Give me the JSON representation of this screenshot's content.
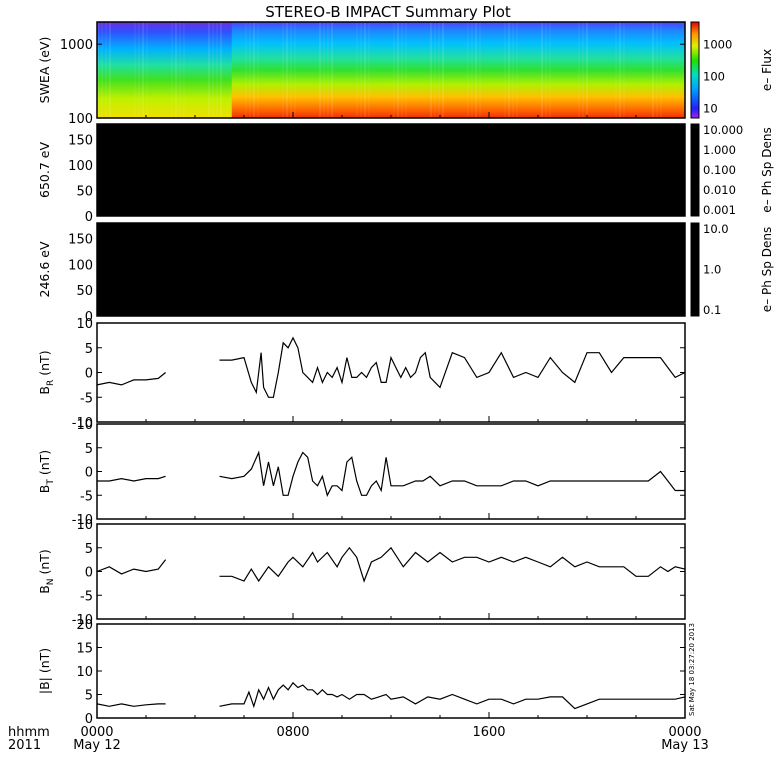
{
  "title": "STEREO-B IMPACT Summary Plot",
  "time_axis": {
    "corner_top": "hhmm",
    "corner_bottom": "2011",
    "ticks": [
      {
        "hour": 0,
        "line1": "0000",
        "line2": "May 12"
      },
      {
        "hour": 8,
        "line1": "0800",
        "line2": ""
      },
      {
        "hour": 16,
        "line1": "1600",
        "line2": ""
      },
      {
        "hour": 24,
        "line1": "0000",
        "line2": "May 13"
      }
    ]
  },
  "stamp": "Sat May 18 03:27:20 2013",
  "colors": {
    "line": "#000000",
    "frame": "#000000",
    "background": "#ffffff"
  },
  "chart_data": [
    {
      "type": "heatmap",
      "id": "swea",
      "ylabel": "SWEA (eV)",
      "yscale": "log",
      "ylim": [
        100,
        2000
      ],
      "yticks": [
        "1000",
        "100"
      ],
      "colorbar": {
        "label": "e– Flux",
        "scale": "log",
        "ticks": [
          "1000",
          "100",
          "10"
        ],
        "range": [
          5,
          5000
        ]
      },
      "description_values": {
        "gap_hours": [
          0,
          5.5
        ],
        "enhanced_flux_hours": [
          5.5,
          23.5
        ]
      }
    },
    {
      "type": "heatmap",
      "id": "pad650",
      "ylabel": "650.7 eV",
      "ylim": [
        0,
        180
      ],
      "yticks": [
        "150",
        "100",
        "50",
        "0"
      ],
      "colorbar": {
        "label": "e– Ph Sp Dens",
        "scale": "log",
        "ticks": [
          "10.000",
          "1.000",
          "0.100",
          "0.010",
          "0.001"
        ]
      }
    },
    {
      "type": "heatmap",
      "id": "pad246",
      "ylabel": "246.6 eV",
      "ylim": [
        0,
        180
      ],
      "yticks": [
        "150",
        "100",
        "50",
        "0"
      ],
      "colorbar": {
        "label": "e– Ph Sp Dens",
        "scale": "log",
        "ticks": [
          "10.0",
          "1.0",
          "0.1"
        ]
      }
    },
    {
      "type": "line",
      "id": "br",
      "ylabel_main": "B",
      "ylabel_sub": "R",
      "ylabel_unit": " (nT)",
      "ylim": [
        -10,
        10
      ],
      "yticks": [
        "10",
        "5",
        "0",
        "-5",
        "-10"
      ],
      "segments": [
        {
          "x": [
            0,
            0.5,
            1,
            1.5,
            2,
            2.5,
            2.8
          ],
          "y": [
            -2.5,
            -2,
            -2.5,
            -1.5,
            -1.5,
            -1.2,
            0
          ]
        },
        {
          "x": [
            5,
            5.5,
            6,
            6.3,
            6.5,
            6.7,
            6.8,
            7,
            7.2,
            7.4,
            7.6,
            7.8,
            8,
            8.2,
            8.4,
            8.6,
            8.8,
            9,
            9.2,
            9.4,
            9.6,
            9.8,
            10,
            10.2,
            10.4,
            10.6,
            10.8,
            11,
            11.2,
            11.4,
            11.6,
            11.8,
            12,
            12.2,
            12.4,
            12.6,
            12.8,
            13,
            13.2,
            13.4,
            13.6,
            13.8,
            14,
            14.5,
            15,
            15.5,
            16,
            16.5,
            17,
            17.5,
            18,
            18.5,
            19,
            19.5,
            20,
            20.5,
            21,
            21.5,
            22,
            22.5,
            23,
            23.3,
            23.6,
            24
          ],
          "y": [
            2.5,
            2.5,
            3,
            -2,
            -4,
            4,
            -3,
            -5,
            -5,
            0,
            6,
            5,
            7,
            5,
            0,
            -1,
            -2,
            1,
            -2,
            0,
            -1,
            1,
            -2,
            3,
            -1,
            -1,
            0,
            -1,
            1,
            2,
            -2,
            -2,
            3,
            1,
            -1,
            1,
            -1,
            0,
            3,
            4,
            -1,
            -2,
            -3,
            4,
            3,
            -1,
            0,
            4,
            -1,
            0,
            -1,
            3,
            0,
            -2,
            4,
            4,
            0,
            3,
            3,
            3,
            3,
            1,
            -1,
            0
          ]
        }
      ]
    },
    {
      "type": "line",
      "id": "bt",
      "ylabel_main": "B",
      "ylabel_sub": "T",
      "ylabel_unit": " (nT)",
      "ylim": [
        -10,
        10
      ],
      "yticks": [
        "10",
        "5",
        "0",
        "-5",
        "-10"
      ],
      "segments": [
        {
          "x": [
            0,
            0.5,
            1,
            1.5,
            2,
            2.5,
            2.8
          ],
          "y": [
            -2,
            -2,
            -1.5,
            -2,
            -1.5,
            -1.5,
            -1
          ]
        },
        {
          "x": [
            5,
            5.5,
            6,
            6.3,
            6.6,
            6.8,
            7,
            7.2,
            7.4,
            7.6,
            7.8,
            8,
            8.2,
            8.4,
            8.6,
            8.8,
            9,
            9.2,
            9.4,
            9.6,
            9.8,
            10,
            10.2,
            10.4,
            10.6,
            10.8,
            11,
            11.2,
            11.4,
            11.6,
            11.8,
            12,
            12.5,
            13,
            13.3,
            13.6,
            14,
            14.5,
            15,
            15.5,
            16,
            16.5,
            17,
            17.5,
            18,
            18.5,
            19,
            19.5,
            20,
            20.5,
            21,
            21.5,
            22,
            22.5,
            23,
            23.3,
            23.6,
            24
          ],
          "y": [
            -1,
            -1.5,
            -1,
            0.5,
            4,
            -3,
            2,
            -3,
            1,
            -5,
            -5,
            -1,
            2,
            4,
            3,
            -2,
            -3,
            -1,
            -5,
            -3,
            -3,
            -4,
            2,
            3,
            -2,
            -5,
            -5,
            -3,
            -2,
            -4,
            3,
            -3,
            -3,
            -2,
            -2,
            -1,
            -3,
            -2,
            -2,
            -3,
            -3,
            -3,
            -2,
            -2,
            -3,
            -2,
            -2,
            -2,
            -2,
            -2,
            -2,
            -2,
            -2,
            -2,
            0,
            -2,
            -4,
            -4
          ]
        }
      ]
    },
    {
      "type": "line",
      "id": "bn",
      "ylabel_main": "B",
      "ylabel_sub": "N",
      "ylabel_unit": " (nT)",
      "ylim": [
        -10,
        10
      ],
      "yticks": [
        "10",
        "5",
        "0",
        "-5",
        "-10"
      ],
      "segments": [
        {
          "x": [
            0,
            0.5,
            1,
            1.5,
            2,
            2.5,
            2.8
          ],
          "y": [
            0,
            1,
            -0.5,
            0.5,
            0,
            0.5,
            2.5
          ]
        },
        {
          "x": [
            5,
            5.5,
            6,
            6.3,
            6.6,
            7,
            7.4,
            7.8,
            8,
            8.4,
            8.8,
            9,
            9.4,
            9.8,
            10,
            10.3,
            10.6,
            10.9,
            11.2,
            11.6,
            12,
            12.5,
            13,
            13.5,
            14,
            14.5,
            15,
            15.5,
            16,
            16.5,
            17,
            17.5,
            18,
            18.5,
            19,
            19.5,
            20,
            20.5,
            21,
            21.5,
            22,
            22.5,
            23,
            23.3,
            23.6,
            24
          ],
          "y": [
            -1,
            -1,
            -2,
            0.5,
            -2,
            1,
            -1,
            2,
            3,
            1,
            4,
            2,
            4,
            1,
            3,
            5,
            3,
            -2,
            2,
            3,
            5,
            1,
            4,
            2,
            4,
            2,
            3,
            3,
            2,
            3,
            2,
            3,
            2,
            1,
            3,
            1,
            2,
            1,
            1,
            1,
            -1,
            -1,
            1,
            0,
            1,
            0.5
          ]
        }
      ]
    },
    {
      "type": "line",
      "id": "bmag",
      "ylabel_main": "|B|",
      "ylabel_sub": "",
      "ylabel_unit": " (nT)",
      "ylim": [
        0,
        20
      ],
      "yticks": [
        "20",
        "15",
        "10",
        "5",
        "0"
      ],
      "segments": [
        {
          "x": [
            0,
            0.5,
            1,
            1.5,
            2,
            2.5,
            2.8
          ],
          "y": [
            3,
            2.5,
            3,
            2.5,
            2.8,
            3,
            3
          ]
        },
        {
          "x": [
            5,
            5.5,
            6,
            6.2,
            6.4,
            6.6,
            6.8,
            7,
            7.2,
            7.4,
            7.6,
            7.8,
            8,
            8.2,
            8.4,
            8.6,
            8.8,
            9,
            9.2,
            9.4,
            9.6,
            9.8,
            10,
            10.3,
            10.6,
            10.9,
            11.2,
            11.5,
            11.8,
            12,
            12.5,
            13,
            13.5,
            14,
            14.5,
            15,
            15.5,
            16,
            16.5,
            17,
            17.5,
            18,
            18.5,
            19,
            19.5,
            20,
            20.5,
            21,
            21.5,
            22,
            22.5,
            23,
            23.3,
            23.6,
            24
          ],
          "y": [
            2.5,
            3,
            3,
            5.5,
            2.5,
            6,
            4,
            6.5,
            4,
            6,
            7,
            6,
            7.5,
            6.5,
            7,
            6,
            6,
            5,
            6,
            5,
            5,
            4.5,
            5,
            4,
            5,
            5,
            4,
            4.5,
            5,
            4,
            4.5,
            3,
            4.5,
            4,
            5,
            4,
            3,
            4,
            4,
            3,
            4,
            4,
            4.5,
            4.5,
            2,
            3,
            4,
            4,
            4,
            4,
            4,
            4,
            4,
            4,
            4.5
          ]
        }
      ]
    }
  ]
}
